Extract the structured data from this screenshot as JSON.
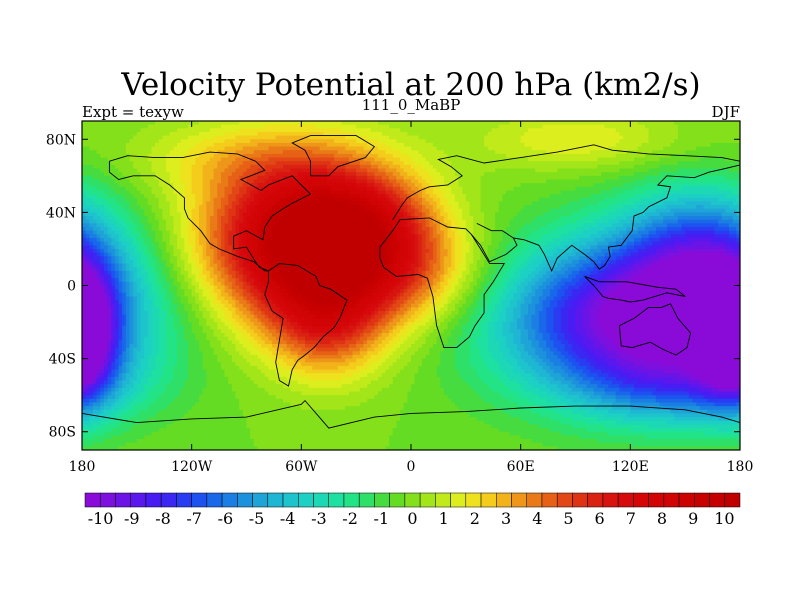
{
  "chart_data": {
    "type": "heatmap",
    "title": "Velocity Potential at 200 hPa (km2/s)",
    "subtitle_left": "Expt = texyw",
    "subtitle_center": "111_0_MaBP",
    "subtitle_right": "DJF",
    "xlim": [
      -180,
      180
    ],
    "ylim": [
      -90,
      90
    ],
    "x_ticks": [
      {
        "value": -180,
        "label": "180"
      },
      {
        "value": -120,
        "label": "120W"
      },
      {
        "value": -60,
        "label": "60W"
      },
      {
        "value": 0,
        "label": "0"
      },
      {
        "value": 60,
        "label": "60E"
      },
      {
        "value": 120,
        "label": "120E"
      },
      {
        "value": 180,
        "label": "180"
      }
    ],
    "y_ticks": [
      {
        "value": 80,
        "label": "80N"
      },
      {
        "value": 40,
        "label": "40N"
      },
      {
        "value": 0,
        "label": "0"
      },
      {
        "value": -40,
        "label": "40S"
      },
      {
        "value": -80,
        "label": "80S"
      }
    ],
    "colorbar": {
      "min": -10.5,
      "max": 10.5,
      "step": 0.5,
      "labels": [
        "-10",
        "-9",
        "-8",
        "-7",
        "-6",
        "-5",
        "-4",
        "-3",
        "-2",
        "-1",
        "0",
        "1",
        "2",
        "3",
        "4",
        "5",
        "6",
        "7",
        "8",
        "9",
        "10"
      ],
      "colors": [
        "#8a0ad8",
        "#7d10de",
        "#6c14e6",
        "#5a18ee",
        "#481cf2",
        "#3a28f2",
        "#2a3cf2",
        "#1e52f0",
        "#1a68ea",
        "#1a7ee2",
        "#1c92dc",
        "#1ea4d6",
        "#1eb6d2",
        "#1ec4cc",
        "#1cd0c4",
        "#1cd8b4",
        "#1ee0a0",
        "#22e486",
        "#2ee068",
        "#46dc40",
        "#64dc24",
        "#84e01a",
        "#a2e61a",
        "#c0ea1a",
        "#dcee1e",
        "#eee21e",
        "#f4cc1c",
        "#f2b21a",
        "#ee961a",
        "#ea7a18",
        "#e66016",
        "#e24816",
        "#de3414",
        "#da2212",
        "#d81410",
        "#d60a0c",
        "#d40608",
        "#d20406",
        "#d00404",
        "#cc0202",
        "#c80000",
        "#c40000",
        "#c00000"
      ]
    },
    "centers": [
      {
        "lon": -58,
        "lat": 24,
        "amp": 11,
        "slon": 38,
        "slat": 32
      },
      {
        "lon": -25,
        "lat": 30,
        "amp": 4,
        "slon": 28,
        "slat": 22
      },
      {
        "lon": -45,
        "lat": -20,
        "amp": 4,
        "slon": 22,
        "slat": 22
      },
      {
        "lon": 5,
        "lat": 5,
        "amp": 2.5,
        "slon": 30,
        "slat": 20
      },
      {
        "lon": 130,
        "lat": -18,
        "amp": -11,
        "slon": 55,
        "slat": 30
      },
      {
        "lon": 160,
        "lat": 20,
        "amp": -5,
        "slon": 30,
        "slat": 25
      },
      {
        "lon": 150,
        "lat": -55,
        "amp": -3,
        "slon": 40,
        "slat": 15
      },
      {
        "lon": -182,
        "lat": -28,
        "amp": -8,
        "slon": 14,
        "slat": 24
      },
      {
        "lon": 90,
        "lat": 80,
        "amp": 2,
        "slon": 40,
        "slat": 12
      },
      {
        "lon": -100,
        "lat": 70,
        "amp": 1.5,
        "slon": 40,
        "slat": 14
      }
    ],
    "coastlines": [
      [
        [
          -165,
          68
        ],
        [
          -155,
          71
        ],
        [
          -140,
          70
        ],
        [
          -125,
          70
        ],
        [
          -110,
          73
        ],
        [
          -95,
          72
        ],
        [
          -85,
          68
        ],
        [
          -80,
          63
        ],
        [
          -93,
          58
        ],
        [
          -82,
          52
        ],
        [
          -78,
          55
        ],
        [
          -65,
          60
        ],
        [
          -60,
          55
        ],
        [
          -55,
          50
        ],
        [
          -65,
          45
        ],
        [
          -70,
          42
        ],
        [
          -76,
          38
        ],
        [
          -80,
          32
        ],
        [
          -81,
          25
        ],
        [
          -90,
          30
        ],
        [
          -97,
          27
        ],
        [
          -97,
          20
        ],
        [
          -90,
          21
        ],
        [
          -87,
          16
        ],
        [
          -83,
          10
        ],
        [
          -78,
          8
        ],
        [
          -80,
          8
        ],
        [
          -86,
          13
        ],
        [
          -95,
          16
        ],
        [
          -105,
          20
        ],
        [
          -110,
          23
        ],
        [
          -115,
          30
        ],
        [
          -122,
          37
        ],
        [
          -124,
          42
        ],
        [
          -124,
          48
        ],
        [
          -132,
          55
        ],
        [
          -140,
          60
        ],
        [
          -152,
          60
        ],
        [
          -160,
          58
        ],
        [
          -165,
          62
        ],
        [
          -165,
          68
        ]
      ],
      [
        [
          -78,
          8
        ],
        [
          -72,
          12
        ],
        [
          -62,
          11
        ],
        [
          -52,
          5
        ],
        [
          -50,
          0
        ],
        [
          -44,
          -2
        ],
        [
          -35,
          -8
        ],
        [
          -39,
          -18
        ],
        [
          -42,
          -23
        ],
        [
          -48,
          -28
        ],
        [
          -53,
          -34
        ],
        [
          -58,
          -38
        ],
        [
          -62,
          -41
        ],
        [
          -65,
          -46
        ],
        [
          -67,
          -55
        ],
        [
          -72,
          -52
        ],
        [
          -74,
          -42
        ],
        [
          -72,
          -30
        ],
        [
          -70,
          -18
        ],
        [
          -76,
          -14
        ],
        [
          -80,
          -5
        ],
        [
          -78,
          2
        ],
        [
          -78,
          8
        ]
      ],
      [
        [
          -10,
          36
        ],
        [
          -5,
          44
        ],
        [
          -2,
          48
        ],
        [
          5,
          52
        ],
        [
          10,
          54
        ],
        [
          20,
          55
        ],
        [
          28,
          60
        ],
        [
          22,
          65
        ],
        [
          15,
          69
        ],
        [
          25,
          71
        ],
        [
          40,
          67
        ],
        [
          60,
          70
        ],
        [
          80,
          73
        ],
        [
          100,
          77
        ],
        [
          110,
          74
        ],
        [
          130,
          72
        ],
        [
          150,
          71
        ],
        [
          170,
          70
        ],
        [
          180,
          68
        ]
      ],
      [
        [
          -17,
          15
        ],
        [
          -17,
          21
        ],
        [
          -10,
          30
        ],
        [
          -6,
          36
        ],
        [
          10,
          37
        ],
        [
          20,
          32
        ],
        [
          30,
          31
        ],
        [
          33,
          28
        ],
        [
          38,
          20
        ],
        [
          43,
          12
        ],
        [
          51,
          12
        ],
        [
          45,
          2
        ],
        [
          40,
          -5
        ],
        [
          40,
          -15
        ],
        [
          35,
          -22
        ],
        [
          32,
          -28
        ],
        [
          25,
          -34
        ],
        [
          18,
          -34
        ],
        [
          14,
          -22
        ],
        [
          12,
          -6
        ],
        [
          9,
          4
        ],
        [
          4,
          6
        ],
        [
          -8,
          5
        ],
        [
          -15,
          10
        ],
        [
          -17,
          15
        ]
      ],
      [
        [
          33,
          28
        ],
        [
          38,
          22
        ],
        [
          43,
          13
        ],
        [
          52,
          17
        ],
        [
          58,
          22
        ],
        [
          56,
          26
        ],
        [
          50,
          30
        ],
        [
          44,
          30
        ],
        [
          36,
          34
        ]
      ],
      [
        [
          56,
          26
        ],
        [
          62,
          25
        ],
        [
          70,
          22
        ],
        [
          73,
          17
        ],
        [
          77,
          8
        ],
        [
          80,
          15
        ],
        [
          88,
          22
        ],
        [
          95,
          17
        ],
        [
          100,
          13
        ],
        [
          103,
          9
        ],
        [
          106,
          11
        ],
        [
          109,
          16
        ],
        [
          108,
          21
        ],
        [
          115,
          22
        ],
        [
          121,
          30
        ],
        [
          122,
          38
        ],
        [
          127,
          40
        ],
        [
          130,
          43
        ],
        [
          140,
          48
        ],
        [
          142,
          54
        ],
        [
          135,
          55
        ],
        [
          140,
          60
        ],
        [
          155,
          59
        ],
        [
          163,
          62
        ],
        [
          172,
          64
        ],
        [
          180,
          66
        ]
      ],
      [
        [
          114,
          -22
        ],
        [
          122,
          -18
        ],
        [
          130,
          -12
        ],
        [
          137,
          -12
        ],
        [
          142,
          -10
        ],
        [
          146,
          -18
        ],
        [
          153,
          -26
        ],
        [
          151,
          -34
        ],
        [
          145,
          -38
        ],
        [
          138,
          -35
        ],
        [
          131,
          -31
        ],
        [
          121,
          -34
        ],
        [
          115,
          -33
        ],
        [
          114,
          -22
        ]
      ],
      [
        [
          -180,
          -70
        ],
        [
          -150,
          -75
        ],
        [
          -120,
          -73
        ],
        [
          -90,
          -72
        ],
        [
          -60,
          -65
        ],
        [
          -58,
          -63
        ],
        [
          -45,
          -78
        ],
        [
          -20,
          -72
        ],
        [
          0,
          -70
        ],
        [
          30,
          -69
        ],
        [
          60,
          -67
        ],
        [
          90,
          -66
        ],
        [
          120,
          -66
        ],
        [
          150,
          -68
        ],
        [
          170,
          -72
        ],
        [
          180,
          -75
        ]
      ],
      [
        [
          -55,
          60
        ],
        [
          -45,
          60
        ],
        [
          -40,
          65
        ],
        [
          -25,
          70
        ],
        [
          -20,
          76
        ],
        [
          -30,
          82
        ],
        [
          -55,
          82
        ],
        [
          -65,
          78
        ],
        [
          -58,
          74
        ],
        [
          -55,
          68
        ],
        [
          -55,
          60
        ]
      ],
      [
        [
          95,
          5
        ],
        [
          100,
          0
        ],
        [
          105,
          -6
        ],
        [
          108,
          -7
        ],
        [
          115,
          -8
        ],
        [
          120,
          -9
        ],
        [
          127,
          -8
        ],
        [
          140,
          -4
        ],
        [
          150,
          -6
        ],
        [
          145,
          -2
        ],
        [
          135,
          -1
        ],
        [
          118,
          2
        ],
        [
          110,
          2
        ],
        [
          103,
          2
        ],
        [
          95,
          5
        ]
      ]
    ]
  }
}
